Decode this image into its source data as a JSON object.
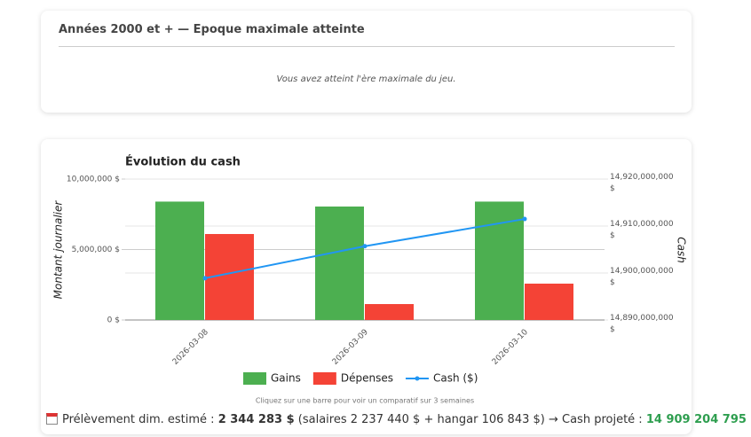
{
  "top_card": {
    "title": "Années 2000 et + — Epoque maximale atteinte",
    "message": "Vous avez atteint l'ère maximale du jeu."
  },
  "chart_data": {
    "type": "bar",
    "title": "Évolution du cash",
    "categories": [
      "2026-03-08",
      "2026-03-09",
      "2026-03-10"
    ],
    "series": [
      {
        "name": "Gains",
        "color": "#4caf50",
        "values": [
          8400000,
          8050000,
          8400000
        ]
      },
      {
        "name": "Dépenses",
        "color": "#f44336",
        "values": [
          6100000,
          1130000,
          2580000
        ]
      },
      {
        "name": "Cash ($)",
        "color": "#2196f3",
        "type": "line",
        "axis": "y2",
        "values": [
          14898900000,
          14905700000,
          14911500000
        ]
      }
    ],
    "y_label": "Montant journalier",
    "y2_label": "Cash",
    "ylim": [
      0,
      10000000
    ],
    "yticks": [
      {
        "value": 0,
        "label": "0 $"
      },
      {
        "value": 5000000,
        "label": "5,000,000 $"
      },
      {
        "value": 10000000,
        "label": "10,000,000 $"
      }
    ],
    "y2lim": [
      14890000000,
      14920000000
    ],
    "y2ticks": [
      {
        "value": 14890000000,
        "label": "14,890,000,000 $"
      },
      {
        "value": 14900000000,
        "label": "14,900,000,000 $"
      },
      {
        "value": 14910000000,
        "label": "14,910,000,000 $"
      },
      {
        "value": 14920000000,
        "label": "14,920,000,000 $"
      }
    ],
    "grid": true,
    "legend": "bottom",
    "note": "Cliquez sur une barre pour voir un comparatif sur 3 semaines"
  },
  "footer": {
    "label": "Prélèvement dim. estimé :",
    "amount": "2 344 283 $",
    "detail": "(salaires 2 237 440 $ + hangar 106 843 $) →",
    "projected_label": "Cash projeté :",
    "projected": "14 909 204 795 $"
  }
}
